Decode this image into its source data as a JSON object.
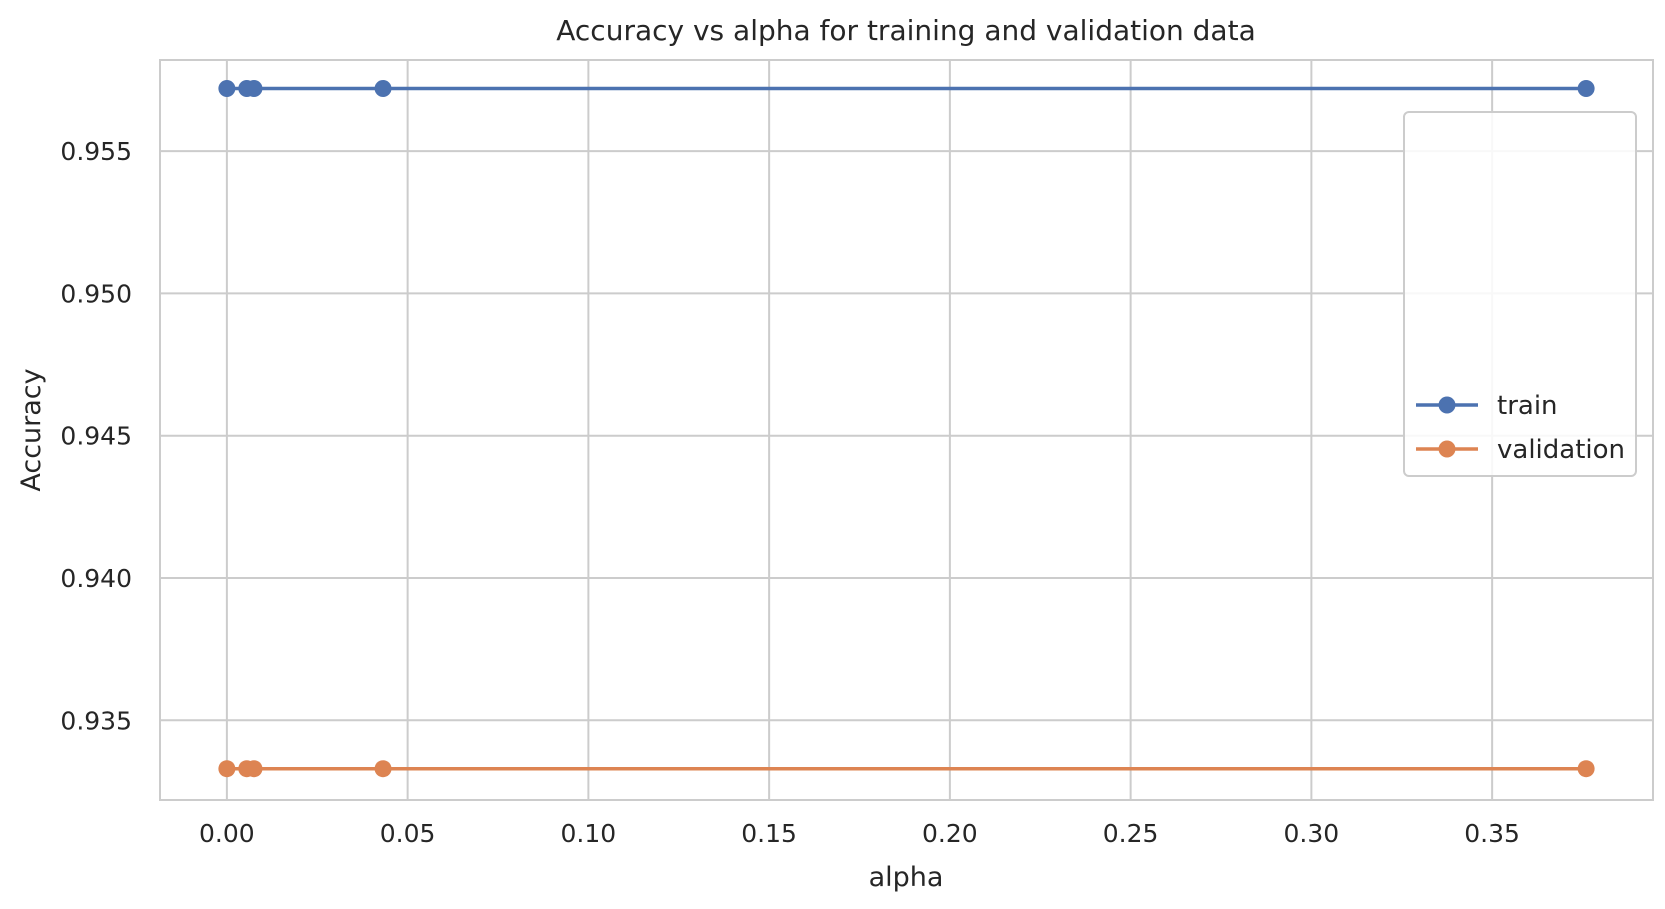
{
  "chart_data": {
    "type": "line",
    "title": "Accuracy vs alpha for training and validation data",
    "xlabel": "alpha",
    "ylabel": "Accuracy",
    "xlim": [
      -0.0185,
      0.3945
    ],
    "ylim": [
      0.9322,
      0.9582
    ],
    "xticks": [
      0.0,
      0.05,
      0.1,
      0.15,
      0.2,
      0.25,
      0.3,
      0.35
    ],
    "xtick_labels": [
      "0.00",
      "0.05",
      "0.10",
      "0.15",
      "0.20",
      "0.25",
      "0.30",
      "0.35"
    ],
    "yticks": [
      0.935,
      0.94,
      0.945,
      0.95,
      0.955
    ],
    "ytick_labels": [
      "0.935",
      "0.940",
      "0.945",
      "0.950",
      "0.955"
    ],
    "grid": true,
    "legend_position": "center-right",
    "series": [
      {
        "name": "train",
        "color": "#4c72b0",
        "marker": "circle",
        "x": [
          0.0,
          0.0055,
          0.0075,
          0.0432,
          0.376
        ],
        "y": [
          0.9572,
          0.9572,
          0.9572,
          0.9572,
          0.9572
        ]
      },
      {
        "name": "validation",
        "color": "#dd8452",
        "marker": "circle",
        "x": [
          0.0,
          0.0055,
          0.0075,
          0.0432,
          0.376
        ],
        "y": [
          0.9333,
          0.9333,
          0.9333,
          0.9333,
          0.9333
        ]
      }
    ]
  }
}
